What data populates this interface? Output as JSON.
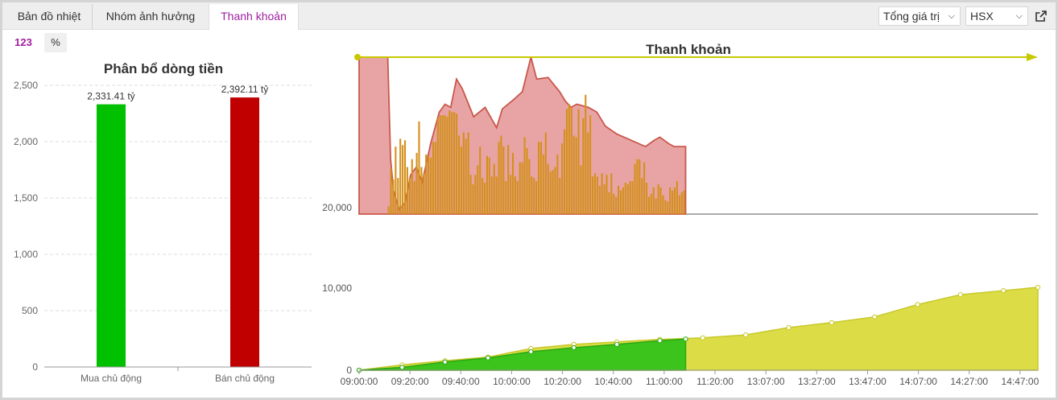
{
  "tabs": [
    {
      "label": "Bản đồ nhiệt",
      "active": false
    },
    {
      "label": "Nhóm ảnh hưởng",
      "active": false
    },
    {
      "label": "Thanh khoản",
      "active": true
    }
  ],
  "controls": {
    "value_select": "Tổng giá trị",
    "exchange_select": "HSX",
    "open_external_icon": "external-link-icon",
    "unit_number": "123",
    "unit_percent": "%"
  },
  "colors": {
    "accent": "#a01fa0",
    "buy": "#00c000",
    "sell": "#c00000",
    "liquidity_line": "#c8c800",
    "today_area": "#3cc31c",
    "compare_area": "#dcdc46",
    "prev_area": "#e8a4a4",
    "volume_bars": "#d4901c"
  },
  "chart_data": [
    {
      "type": "bar",
      "title": "Phân bổ dòng tiền",
      "categories": [
        "Mua chủ động",
        "Bán chủ động"
      ],
      "values": [
        2331.41,
        2392.11
      ],
      "data_labels": [
        "2,331.41 tỷ",
        "2,392.11 tỷ"
      ],
      "colors": [
        "#00c000",
        "#c00000"
      ],
      "ylim": [
        0,
        2500
      ],
      "yticks": [
        0,
        500,
        1000,
        1500,
        2000,
        2500
      ],
      "ytick_labels": [
        "0",
        "500",
        "1,000",
        "1,500",
        "2,000",
        "2,500"
      ],
      "grid": true
    },
    {
      "type": "area",
      "title": "Thanh khoản",
      "grid": false,
      "xticks": [
        "09:00:00",
        "09:20:00",
        "09:40:00",
        "10:00:00",
        "10:20:00",
        "10:40:00",
        "11:00:00",
        "11:20:00",
        "13:07:00",
        "13:27:00",
        "13:47:00",
        "14:07:00",
        "14:27:00",
        "14:47:00"
      ],
      "yticks_bottom": [
        0,
        10000
      ],
      "ytick_labels_bottom": [
        "0",
        "10,000"
      ],
      "ytick_label_top": "20,000",
      "series": [
        {
          "kind": "cumulative_area",
          "color": "#dcdc46",
          "x": [
            0,
            15,
            30,
            45,
            60,
            75,
            90,
            105,
            120,
            135,
            150,
            165,
            180,
            195,
            210,
            225,
            237
          ],
          "values": [
            0,
            650,
            1150,
            1600,
            2650,
            3150,
            3450,
            3750,
            3950,
            4300,
            5200,
            5800,
            6500,
            8000,
            9200,
            9700,
            10100
          ]
        },
        {
          "kind": "cumulative_area",
          "color": "#3cc31c",
          "x": [
            0,
            15,
            30,
            45,
            60,
            75,
            90,
            105,
            114
          ],
          "values": [
            0,
            350,
            1000,
            1500,
            2250,
            2750,
            3150,
            3600,
            3800
          ]
        },
        {
          "kind": "intraday_area",
          "color": "#e8a4a4",
          "x": [
            0,
            10,
            11,
            12,
            14,
            16,
            18,
            20,
            22,
            25,
            28,
            30,
            32,
            34,
            36,
            40,
            44,
            48,
            50,
            54,
            57,
            60,
            62,
            66,
            70,
            72,
            74,
            76,
            80,
            83,
            86,
            90,
            95,
            100,
            103,
            105,
            108,
            110,
            114
          ],
          "values": [
            30000,
            30000,
            23500,
            21500,
            20300,
            20700,
            22500,
            23000,
            22000,
            24500,
            26500,
            27000,
            26800,
            28600,
            28000,
            26200,
            26800,
            25500,
            26700,
            27300,
            27800,
            30000,
            28600,
            28700,
            27800,
            27200,
            26800,
            27000,
            26800,
            26500,
            25600,
            25100,
            24700,
            24300,
            24700,
            24900,
            24500,
            24300,
            24300
          ]
        }
      ],
      "volume_bars": [
        5,
        29,
        22,
        43,
        23,
        48,
        44,
        47,
        30,
        23,
        35,
        21,
        39,
        59,
        30,
        26,
        38,
        37,
        36,
        46,
        46,
        61,
        63,
        63,
        63,
        62,
        66,
        65,
        65,
        64,
        50,
        43,
        52,
        48,
        52,
        25,
        19,
        25,
        31,
        43,
        23,
        20,
        37,
        36,
        24,
        32,
        24,
        46,
        50,
        43,
        21,
        44,
        25,
        39,
        24,
        21,
        33,
        33,
        49,
        42,
        35,
        24,
        23,
        21,
        46,
        46,
        38,
        52,
        32,
        27,
        28,
        30,
        38,
        23,
        45,
        54,
        67,
        70,
        68,
        50,
        49,
        67,
        31,
        61,
        76,
        52,
        63,
        24,
        26,
        24,
        18,
        26,
        19,
        25,
        14,
        26,
        13,
        11,
        18,
        15,
        17,
        20,
        19,
        21,
        21,
        32,
        35,
        35,
        23,
        33,
        20,
        11,
        13,
        17,
        10,
        19,
        17,
        12,
        9,
        8,
        17,
        15,
        17,
        21,
        12,
        14,
        15
      ]
    }
  ]
}
